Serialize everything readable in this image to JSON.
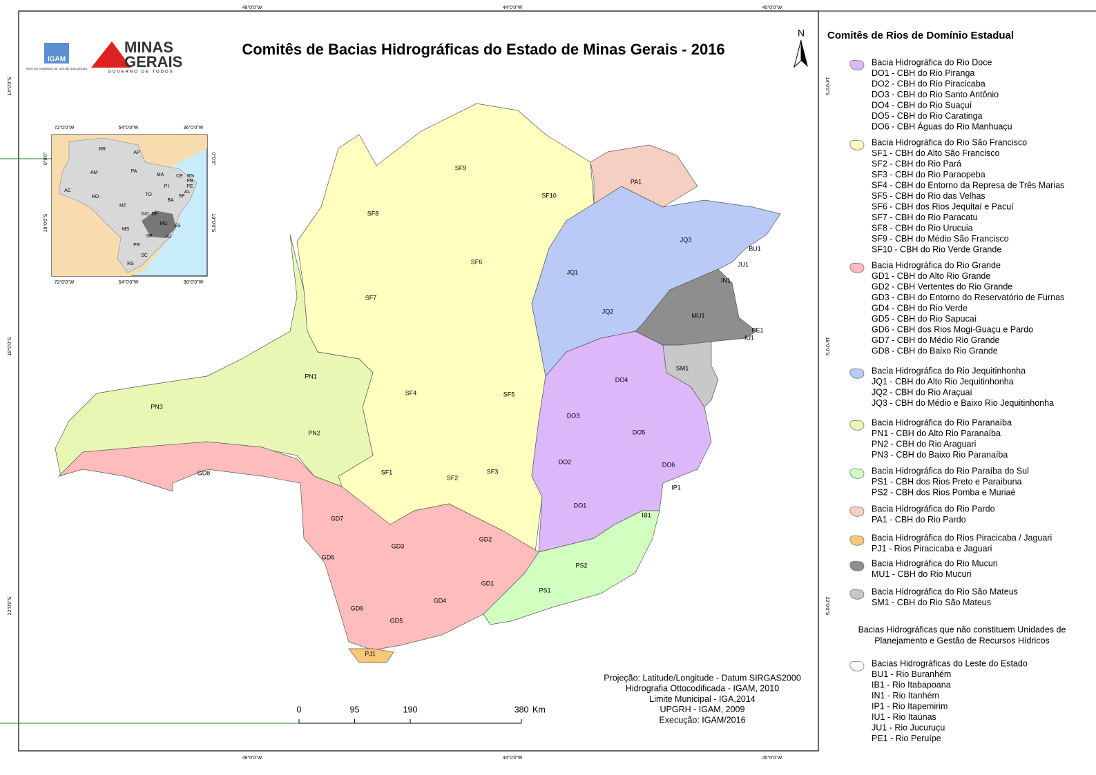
{
  "title": "Comitês de Bacias Hidrográficas do Estado de Minas Gerais - 2016",
  "north": "N",
  "logos": {
    "igam": "IGAM",
    "igam_sub": "INSTITUTO MINEIRO DE GESTÃO DAS ÁGUAS",
    "minas": "MINAS",
    "gerais": "GERAIS",
    "slogan": "GOVERNO DE TODOS"
  },
  "graticule": {
    "lon": [
      "48°0'0\"W",
      "44°0'0\"W",
      "40°0'0\"W"
    ],
    "lat": [
      "14°0'0\"S",
      "18°0'0\"S",
      "22°0'0\"S"
    ]
  },
  "inset": {
    "lon": [
      "72°0'0\"W",
      "54°0'0\"W",
      "36°0'0\"W"
    ],
    "lat": [
      "0°0'0\"",
      "18°0'0\"S"
    ],
    "states": [
      "RR",
      "AP",
      "AM",
      "PA",
      "MA",
      "CE",
      "RN",
      "PB",
      "PE",
      "AL",
      "SE",
      "PI",
      "AC",
      "RO",
      "TO",
      "BA",
      "MT",
      "GO",
      "DF",
      "MS",
      "MG",
      "ES",
      "SP",
      "RJ",
      "PR",
      "SC",
      "RS"
    ]
  },
  "regions": [
    "SF9",
    "SF10",
    "SF8",
    "SF6",
    "SF7",
    "SF4",
    "SF5",
    "SF1",
    "SF2",
    "SF3",
    "PN1",
    "PN3",
    "PN2",
    "GD8",
    "GD7",
    "GD6",
    "GD3",
    "GD2",
    "GD1",
    "GD4",
    "GD6",
    "GD5",
    "PJ1",
    "PA1",
    "JQ3",
    "JQ1",
    "JQ2",
    "MU1",
    "BU1",
    "JU1",
    "IN1",
    "PE1",
    "IU1",
    "SM1",
    "DO4",
    "DO3",
    "DO5",
    "DO2",
    "DO6",
    "IP1",
    "DO1",
    "IB1",
    "PS2",
    "PS1"
  ],
  "legend": {
    "heading": "Comitês de Rios de Domínio Estadual",
    "groups": [
      {
        "name": "Bacia Hidrográfica do Rio Doce",
        "color": "#dcb8fa",
        "items": [
          "DO1 - CBH do Rio Piranga",
          "DO2 - CBH do Rio Piracicaba",
          "DO3 - CBH do Rio Santo Antônio",
          "DO4 - CBH do Rio Suaçuí",
          "DO5 - CBH do Rio Caratinga",
          "DO6 - CBH Águas do Rio Manhuaçu"
        ]
      },
      {
        "name": "Bacia Hidrográfica do Rio São Francisco",
        "color": "#ffffc0",
        "items": [
          "SF1 - CBH do Alto São Francisco",
          "SF2 - CBH do Rio Pará",
          "SF3 - CBH do Rio Paraopeba",
          "SF4 - CBH do Entorno da Represa de Três Marias",
          "SF5 - CBH do Rio das Velhas",
          "SF6 - CBH dos Rios Jequitaí e Pacuí",
          "SF7 - CBH do Rio Paracatu",
          "SF8 - CBH do Rio Urucuia",
          "SF9 - CBH do Médio São Francisco",
          "SF10 - CBH do Rio Verde Grande"
        ]
      },
      {
        "name": "Bacia Hidrográfica do Rio Grande",
        "color": "#ffbcbc",
        "items": [
          "GD1 - CBH do Alto Rio Grande",
          "GD2 - CBH Vertentes do Rio Grande",
          "GD3 - CBH do Entorno do Reservatório de Furnas",
          "GD4 - CBH do Rio Verde",
          "GD5 - CBH do Rio Sapucaí",
          "GD6 - CBH dos Rios Mogi-Guaçu e Pardo",
          "GD7 - CBH do Médio Rio Grande",
          "GD8 - CBH do Baixo Rio Grande"
        ]
      },
      {
        "name": "Bacia Hidrográfica do Rio Jequitinhonha",
        "color": "#b8caf5",
        "items": [
          "JQ1 - CBH do Alto Rio Jequitinhonha",
          "JQ2 - CBH do Rio Araçuaí",
          "JQ3 - CBH do Médio e Baixo Rio Jequitinhonha"
        ]
      },
      {
        "name": "Bacia Hidrográfica do Rio Paranaíba",
        "color": "#e8f8b4",
        "items": [
          "PN1 - CBH do Alto Rio Paranaíba",
          "PN2 - CBH do Rio Araguari",
          "PN3 - CBH do Baixo Rio Paranaíba"
        ]
      },
      {
        "name": "Bacia Hidrográfica do Rio Paraíba do Sul",
        "color": "#d0ffc0",
        "items": [
          "PS1 - CBH dos Rios Preto e Paraibuna",
          "PS2 - CBH dos Rios Pomba e Muriaé"
        ]
      },
      {
        "name": "Bacia Hidrográfica do Rio Pardo",
        "color": "#f5d0c2",
        "items": [
          "PA1 - CBH do Rio Pardo"
        ]
      },
      {
        "name": "Bacia Hidrográfica do Rios Piracicaba / Jaguari",
        "color": "#f8c878",
        "items": [
          "PJ1 - Rios Piracicaba e Jaguari"
        ]
      },
      {
        "name": "Bacia Hidrográfica do Rio Mucuri",
        "color": "#8e8e8e",
        "items": [
          "MU1 - CBH do Rio Mucuri"
        ]
      },
      {
        "name": "Bacia Hidrográfica do Rio São Mateus",
        "color": "#c8c8c8",
        "items": [
          "SM1 - CBH do Rio São Mateus"
        ]
      }
    ],
    "note": [
      "Bacias Hidrográficas que não constituem Unidades de",
      "Planejamento e Gestão de Recursos Hídricos"
    ],
    "other": {
      "name": "Bacias Hidrográficas do Leste do Estado",
      "color": "#ffffff",
      "items": [
        "BU1 - Rio Buranhém",
        "IB1 - Rio Itabapoana",
        "IN1 - Rio Itanhém",
        "IP1 - Rio Itapemirim",
        "IU1 - Rio Itaúnas",
        "JU1 - Rio Jucuruçu",
        "PE1 - Rio Peruípe"
      ]
    }
  },
  "credits": [
    "Projeção: Latitude/Longitude - Datum SIRGAS2000",
    "Hidrografia Ottocodificada - IGAM, 2010",
    "Limite Municipal - IGA,2014",
    "UPGRH - IGAM, 2009",
    "Execução: IGAM/2016"
  ],
  "scale": {
    "ticks": [
      0,
      95,
      190,
      380
    ],
    "unit": "Km"
  }
}
